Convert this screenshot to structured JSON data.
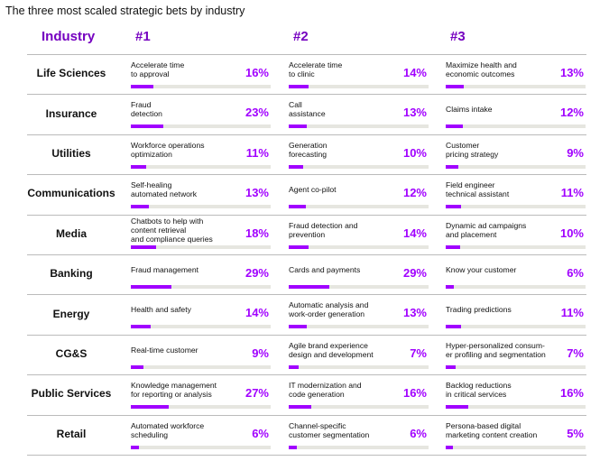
{
  "title": "The three most scaled strategic bets by industry",
  "headers": [
    "Industry",
    "#1",
    "#2",
    "#3"
  ],
  "rows": [
    {
      "industry": "Life Sciences",
      "bets": [
        {
          "label": "Accelerate time\nto approval",
          "value": 16,
          "value_label": "16%"
        },
        {
          "label": "Accelerate time\nto clinic",
          "value": 14,
          "value_label": "14%"
        },
        {
          "label": "Maximize health and\neconomic outcomes",
          "value": 13,
          "value_label": "13%"
        }
      ]
    },
    {
      "industry": "Insurance",
      "bets": [
        {
          "label": "Fraud\ndetection",
          "value": 23,
          "value_label": "23%"
        },
        {
          "label": "Call\nassistance",
          "value": 13,
          "value_label": "13%"
        },
        {
          "label": "Claims intake",
          "value": 12,
          "value_label": "12%"
        }
      ]
    },
    {
      "industry": "Utilities",
      "bets": [
        {
          "label": "Workforce operations\noptimization",
          "value": 11,
          "value_label": "11%"
        },
        {
          "label": "Generation\nforecasting",
          "value": 10,
          "value_label": "10%"
        },
        {
          "label": "Customer\npricing strategy",
          "value": 9,
          "value_label": "9%"
        }
      ]
    },
    {
      "industry": "Communications",
      "bets": [
        {
          "label": "Self-healing\nautomated network",
          "value": 13,
          "value_label": "13%"
        },
        {
          "label": "Agent co-pilot",
          "value": 12,
          "value_label": "12%"
        },
        {
          "label": "Field engineer\ntechnical assistant",
          "value": 11,
          "value_label": "11%"
        }
      ]
    },
    {
      "industry": "Media",
      "bets": [
        {
          "label": "Chatbots to help with\ncontent retrieval\nand compliance queries",
          "value": 18,
          "value_label": "18%"
        },
        {
          "label": "Fraud detection and\nprevention",
          "value": 14,
          "value_label": "14%"
        },
        {
          "label": "Dynamic ad campaigns\nand placement",
          "value": 10,
          "value_label": "10%"
        }
      ]
    },
    {
      "industry": "Banking",
      "bets": [
        {
          "label": "Fraud management",
          "value": 29,
          "value_label": "29%"
        },
        {
          "label": "Cards and payments",
          "value": 29,
          "value_label": "29%"
        },
        {
          "label": "Know your customer",
          "value": 6,
          "value_label": "6%"
        }
      ]
    },
    {
      "industry": "Energy",
      "bets": [
        {
          "label": "Health and safety",
          "value": 14,
          "value_label": "14%"
        },
        {
          "label": "Automatic analysis and\nwork-order generation",
          "value": 13,
          "value_label": "13%"
        },
        {
          "label": "Trading predictions",
          "value": 11,
          "value_label": "11%"
        }
      ]
    },
    {
      "industry": "CG&S",
      "bets": [
        {
          "label": "Real-time customer",
          "value": 9,
          "value_label": "9%"
        },
        {
          "label": "Agile brand experience\ndesign and development",
          "value": 7,
          "value_label": "7%"
        },
        {
          "label": "Hyper-personalized  consum-\ner profiling and segmentation",
          "value": 7,
          "value_label": "7%"
        }
      ]
    },
    {
      "industry": "Public Services",
      "bets": [
        {
          "label": "Knowledge management\nfor reporting or analysis",
          "value": 27,
          "value_label": "27%"
        },
        {
          "label": "IT modernization and\ncode generation",
          "value": 16,
          "value_label": "16%"
        },
        {
          "label": "Backlog reductions\nin critical services",
          "value": 16,
          "value_label": "16%"
        }
      ]
    },
    {
      "industry": "Retail",
      "bets": [
        {
          "label": "Automated workforce\nscheduling",
          "value": 6,
          "value_label": "6%"
        },
        {
          "label": "Channel-specific\ncustomer segmentation",
          "value": 6,
          "value_label": "6%"
        },
        {
          "label": "Persona-based digital\nmarketing content creation",
          "value": 5,
          "value_label": "5%"
        }
      ]
    }
  ]
}
